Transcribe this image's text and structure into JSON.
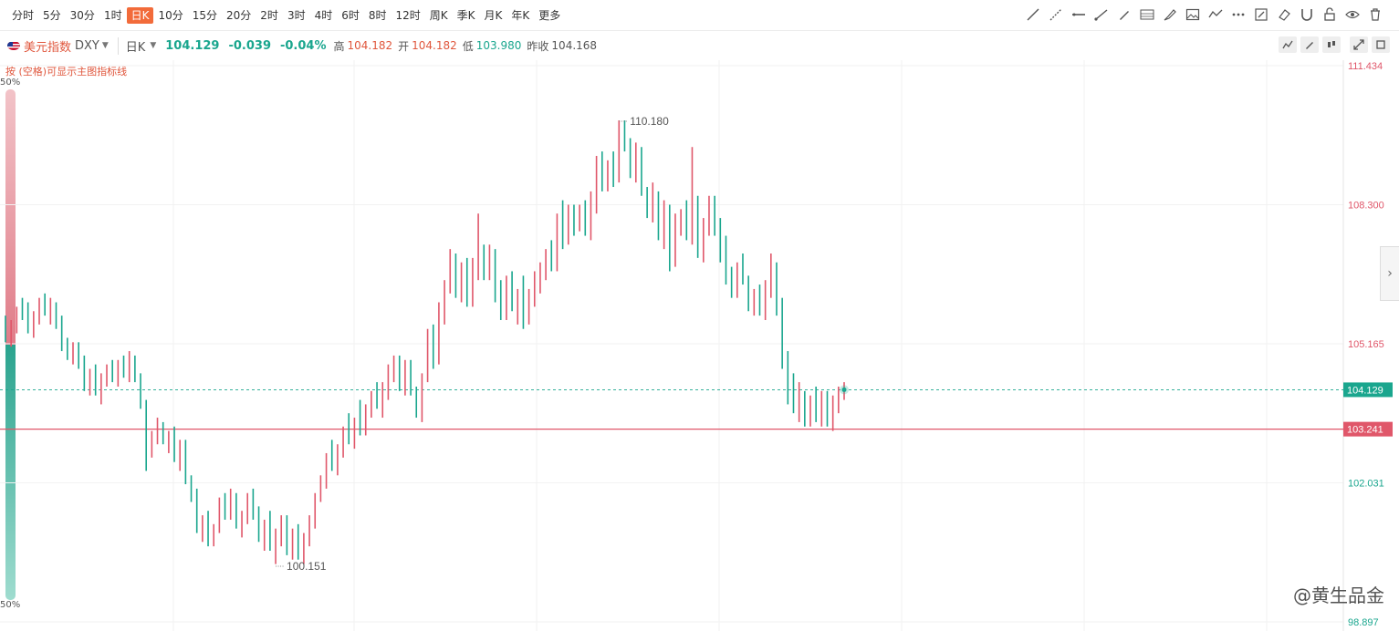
{
  "toolbar": {
    "periods": [
      "分时",
      "5分",
      "30分",
      "1时",
      "日K",
      "10分",
      "15分",
      "20分",
      "2时",
      "3时",
      "4时",
      "6时",
      "8时",
      "12时",
      "周K",
      "季K",
      "月K",
      "年K",
      "更多"
    ],
    "active_period": "日K",
    "tools": [
      "line-icon",
      "ray-icon",
      "hline-icon",
      "segment-icon",
      "pen-icon",
      "fib-icon",
      "brush-icon",
      "image-icon",
      "wave-icon",
      "more-icon",
      "edit-icon",
      "eraser-icon",
      "magnet-icon",
      "lock-icon",
      "eye-icon",
      "trash-icon"
    ]
  },
  "header": {
    "name": "美元指数",
    "code": "DXY",
    "period": "日K",
    "price": "104.129",
    "change": "-0.039",
    "change_pct": "-0.04%",
    "high_label": "高",
    "high": "104.182",
    "open_label": "开",
    "open": "104.182",
    "low_label": "低",
    "low": "103.980",
    "prev_label": "昨收",
    "prev": "104.168"
  },
  "hint": "按 (空格)可显示主图指标线",
  "side_pct_top": "50%",
  "side_pct_bottom": "50%",
  "watermark": "@黄生品金",
  "colors": {
    "up": "#e0576a",
    "down": "#1aa68e",
    "level": "#e0576a"
  },
  "chart_data": {
    "type": "ohlc",
    "y_ticks": [
      111.434,
      108.3,
      105.165,
      102.031,
      98.897
    ],
    "ylim": [
      98.897,
      111.434
    ],
    "current_price": 104.129,
    "level_line": 103.241,
    "annotations": [
      {
        "label": "110.180",
        "value": 110.18
      },
      {
        "label": "100.151",
        "value": 100.151
      }
    ],
    "bars": [
      [
        105.6,
        105.8,
        105.2,
        105.3
      ],
      [
        105.3,
        105.7,
        105.1,
        105.6
      ],
      [
        105.6,
        106.0,
        105.4,
        105.9
      ],
      [
        105.9,
        106.2,
        105.7,
        105.8
      ],
      [
        105.8,
        106.1,
        105.4,
        105.5
      ],
      [
        105.5,
        105.9,
        105.3,
        105.8
      ],
      [
        105.8,
        106.2,
        105.6,
        106.1
      ],
      [
        106.1,
        106.3,
        105.8,
        105.9
      ],
      [
        105.9,
        106.2,
        105.6,
        106.0
      ],
      [
        106.0,
        106.1,
        105.5,
        105.6
      ],
      [
        105.6,
        105.8,
        105.0,
        105.1
      ],
      [
        105.1,
        105.3,
        104.8,
        104.9
      ],
      [
        104.9,
        105.2,
        104.7,
        105.0
      ],
      [
        105.0,
        105.2,
        104.6,
        104.7
      ],
      [
        104.7,
        104.9,
        104.1,
        104.2
      ],
      [
        104.2,
        104.6,
        104.0,
        104.5
      ],
      [
        104.5,
        104.7,
        104.0,
        104.1
      ],
      [
        104.1,
        104.5,
        103.8,
        104.4
      ],
      [
        104.4,
        104.7,
        104.2,
        104.6
      ],
      [
        104.6,
        104.8,
        104.3,
        104.4
      ],
      [
        104.4,
        104.8,
        104.2,
        104.7
      ],
      [
        104.7,
        104.9,
        104.4,
        104.5
      ],
      [
        104.5,
        105.0,
        104.3,
        104.8
      ],
      [
        104.8,
        104.9,
        104.3,
        104.4
      ],
      [
        104.4,
        104.5,
        103.7,
        103.8
      ],
      [
        103.8,
        103.9,
        102.3,
        102.7
      ],
      [
        102.7,
        103.2,
        102.6,
        103.1
      ],
      [
        103.1,
        103.5,
        102.9,
        103.3
      ],
      [
        103.3,
        103.4,
        102.9,
        103.0
      ],
      [
        103.0,
        103.2,
        102.7,
        103.1
      ],
      [
        103.1,
        103.3,
        102.5,
        102.6
      ],
      [
        102.6,
        103.0,
        102.3,
        102.9
      ],
      [
        102.9,
        103.0,
        102.0,
        102.1
      ],
      [
        102.1,
        102.2,
        101.6,
        101.7
      ],
      [
        101.7,
        101.9,
        100.9,
        101.0
      ],
      [
        101.0,
        101.3,
        100.7,
        101.2
      ],
      [
        101.2,
        101.4,
        100.6,
        100.7
      ],
      [
        100.7,
        101.1,
        100.6,
        101.0
      ],
      [
        101.0,
        101.7,
        100.9,
        101.6
      ],
      [
        101.6,
        101.8,
        101.2,
        101.3
      ],
      [
        101.3,
        101.9,
        101.2,
        101.7
      ],
      [
        101.7,
        101.8,
        101.0,
        101.1
      ],
      [
        101.1,
        101.4,
        100.8,
        101.3
      ],
      [
        101.3,
        101.8,
        101.1,
        101.6
      ],
      [
        101.6,
        101.9,
        101.2,
        101.4
      ],
      [
        101.4,
        101.5,
        100.7,
        100.9
      ],
      [
        100.9,
        101.2,
        100.5,
        101.1
      ],
      [
        101.1,
        101.4,
        100.5,
        100.6
      ],
      [
        100.6,
        101.0,
        100.2,
        100.9
      ],
      [
        100.9,
        101.3,
        100.6,
        101.1
      ],
      [
        101.1,
        101.3,
        100.4,
        100.5
      ],
      [
        100.5,
        101.0,
        100.3,
        100.8
      ],
      [
        100.8,
        101.1,
        100.3,
        100.4
      ],
      [
        100.4,
        100.9,
        100.2,
        100.8
      ],
      [
        100.8,
        101.3,
        100.6,
        101.2
      ],
      [
        101.2,
        101.8,
        101.0,
        101.7
      ],
      [
        101.7,
        102.2,
        101.6,
        102.1
      ],
      [
        102.1,
        102.7,
        101.9,
        102.6
      ],
      [
        102.6,
        103.0,
        102.3,
        102.4
      ],
      [
        102.4,
        102.9,
        102.2,
        102.8
      ],
      [
        102.8,
        103.3,
        102.6,
        103.2
      ],
      [
        103.2,
        103.6,
        102.9,
        103.0
      ],
      [
        103.0,
        103.5,
        102.8,
        103.4
      ],
      [
        103.4,
        103.9,
        103.1,
        103.2
      ],
      [
        103.2,
        103.8,
        103.1,
        103.7
      ],
      [
        103.7,
        104.1,
        103.5,
        104.0
      ],
      [
        104.0,
        104.3,
        103.7,
        103.8
      ],
      [
        103.8,
        104.3,
        103.5,
        104.2
      ],
      [
        104.2,
        104.7,
        103.9,
        104.5
      ],
      [
        104.5,
        104.9,
        104.3,
        104.6
      ],
      [
        104.6,
        104.9,
        104.1,
        104.3
      ],
      [
        104.3,
        104.8,
        104.0,
        104.7
      ],
      [
        104.7,
        104.8,
        104.0,
        104.1
      ],
      [
        104.1,
        104.2,
        103.5,
        103.6
      ],
      [
        103.6,
        104.5,
        103.4,
        104.4
      ],
      [
        104.4,
        105.5,
        104.3,
        105.3
      ],
      [
        105.3,
        105.6,
        104.6,
        104.8
      ],
      [
        104.8,
        106.1,
        104.7,
        105.8
      ],
      [
        105.8,
        106.6,
        105.6,
        106.5
      ],
      [
        106.5,
        107.3,
        106.3,
        107.0
      ],
      [
        107.0,
        107.2,
        106.2,
        106.4
      ],
      [
        106.4,
        107.0,
        106.1,
        106.9
      ],
      [
        106.9,
        107.1,
        106.0,
        106.2
      ],
      [
        106.2,
        107.1,
        106.0,
        106.8
      ],
      [
        106.8,
        108.1,
        106.6,
        107.3
      ],
      [
        107.3,
        107.4,
        106.6,
        106.8
      ],
      [
        106.8,
        107.4,
        106.6,
        107.2
      ],
      [
        107.2,
        107.3,
        106.1,
        106.3
      ],
      [
        106.3,
        106.6,
        105.7,
        105.9
      ],
      [
        105.9,
        106.7,
        105.7,
        106.4
      ],
      [
        106.4,
        106.8,
        105.9,
        106.1
      ],
      [
        106.1,
        106.4,
        105.6,
        106.3
      ],
      [
        106.3,
        106.7,
        105.5,
        105.7
      ],
      [
        105.7,
        106.4,
        105.6,
        106.2
      ],
      [
        106.2,
        106.8,
        106.0,
        106.6
      ],
      [
        106.6,
        107.0,
        106.3,
        106.8
      ],
      [
        106.8,
        107.3,
        106.6,
        107.1
      ],
      [
        107.1,
        107.5,
        106.8,
        106.9
      ],
      [
        106.9,
        108.1,
        106.8,
        107.9
      ],
      [
        107.9,
        108.4,
        107.3,
        107.5
      ],
      [
        107.5,
        108.3,
        107.4,
        108.1
      ],
      [
        108.1,
        108.3,
        107.6,
        107.9
      ],
      [
        107.9,
        108.3,
        107.7,
        108.2
      ],
      [
        108.2,
        108.4,
        107.6,
        107.7
      ],
      [
        107.7,
        108.6,
        107.5,
        108.4
      ],
      [
        108.4,
        109.4,
        108.1,
        109.1
      ],
      [
        109.1,
        109.5,
        108.6,
        108.8
      ],
      [
        108.8,
        109.3,
        108.6,
        109.2
      ],
      [
        109.2,
        109.5,
        108.7,
        108.9
      ],
      [
        108.9,
        110.2,
        108.8,
        109.9
      ],
      [
        109.9,
        110.2,
        109.5,
        109.6
      ],
      [
        109.6,
        109.8,
        108.9,
        109.0
      ],
      [
        109.0,
        109.7,
        108.8,
        109.5
      ],
      [
        109.5,
        109.6,
        108.5,
        108.6
      ],
      [
        108.6,
        108.7,
        108.0,
        108.1
      ],
      [
        108.1,
        108.8,
        107.9,
        108.5
      ],
      [
        108.5,
        108.6,
        107.5,
        107.6
      ],
      [
        107.6,
        108.4,
        107.3,
        108.2
      ],
      [
        108.2,
        108.3,
        106.8,
        107.0
      ],
      [
        107.0,
        108.1,
        106.9,
        107.9
      ],
      [
        107.9,
        108.2,
        107.6,
        108.0
      ],
      [
        108.0,
        108.4,
        107.5,
        107.6
      ],
      [
        107.6,
        109.6,
        107.4,
        108.4
      ],
      [
        108.4,
        108.5,
        107.1,
        107.3
      ],
      [
        107.3,
        108.0,
        107.0,
        107.8
      ],
      [
        107.8,
        108.5,
        107.6,
        108.3
      ],
      [
        108.3,
        108.5,
        107.6,
        107.8
      ],
      [
        107.8,
        108.0,
        107.0,
        107.2
      ],
      [
        107.2,
        107.6,
        106.5,
        106.7
      ],
      [
        106.7,
        106.9,
        106.2,
        106.3
      ],
      [
        106.3,
        107.0,
        106.2,
        106.8
      ],
      [
        106.8,
        107.2,
        106.5,
        106.6
      ],
      [
        106.6,
        106.7,
        105.9,
        106.0
      ],
      [
        106.0,
        106.4,
        105.8,
        106.3
      ],
      [
        106.3,
        106.5,
        105.8,
        105.9
      ],
      [
        105.9,
        106.6,
        105.7,
        106.4
      ],
      [
        106.4,
        107.2,
        106.2,
        106.9
      ],
      [
        106.9,
        107.0,
        105.8,
        106.1
      ],
      [
        106.1,
        106.2,
        104.6,
        104.9
      ],
      [
        104.9,
        105.0,
        103.8,
        104.1
      ],
      [
        104.1,
        104.5,
        103.6,
        103.7
      ],
      [
        103.7,
        104.3,
        103.4,
        104.0
      ],
      [
        104.0,
        104.1,
        103.3,
        103.4
      ],
      [
        103.4,
        104.0,
        103.3,
        103.8
      ],
      [
        103.8,
        104.2,
        103.4,
        103.5
      ],
      [
        103.5,
        104.1,
        103.3,
        104.0
      ],
      [
        104.0,
        104.1,
        103.3,
        103.4
      ],
      [
        103.4,
        104.0,
        103.2,
        103.7
      ],
      [
        103.7,
        104.2,
        103.6,
        104.1
      ],
      [
        104.1,
        104.3,
        103.9,
        104.2
      ]
    ]
  }
}
